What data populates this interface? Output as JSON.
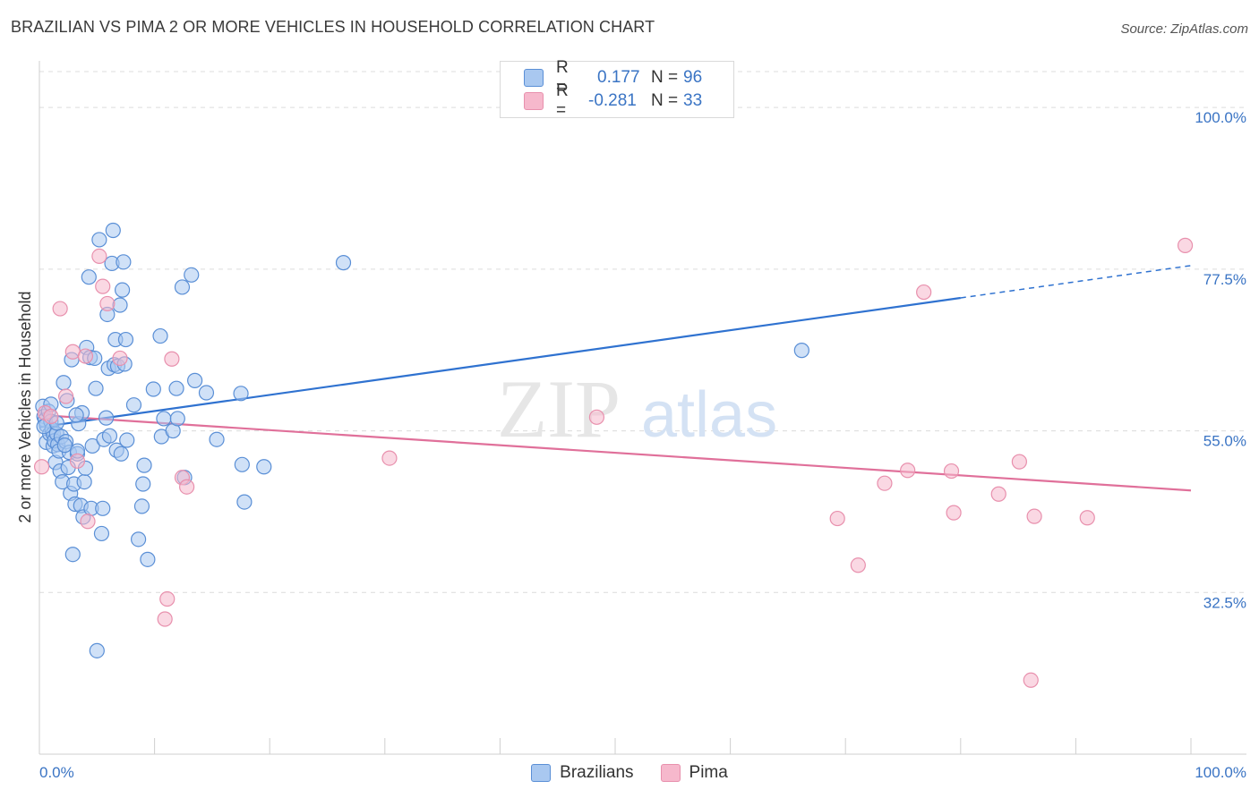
{
  "title": "BRAZILIAN VS PIMA 2 OR MORE VEHICLES IN HOUSEHOLD CORRELATION CHART",
  "source": "Source: ZipAtlas.com",
  "watermark": {
    "zip": "ZIP",
    "atlas": "atlas"
  },
  "colors": {
    "blue_fill": "#a9c8f0",
    "blue_stroke": "#5a8fd6",
    "blue_line": "#2f72d0",
    "pink_fill": "#f6b8cc",
    "pink_stroke": "#e890ad",
    "pink_line": "#e0709a",
    "axis_text": "#3a74c4",
    "grid": "#dcdcdc"
  },
  "legend": {
    "rows": [
      {
        "r_label": "R =",
        "r_value": "0.177",
        "n_label": "N =",
        "n_value": "96"
      },
      {
        "r_label": "R =",
        "r_value": "-0.281",
        "n_label": "N =",
        "n_value": "33"
      }
    ]
  },
  "bottom_legend": [
    "Brazilians",
    "Pima"
  ],
  "chart_data": {
    "type": "scatter",
    "xlabel": "",
    "ylabel": "2 or more Vehicles in Household",
    "xlim": [
      0,
      100
    ],
    "ylim": [
      10,
      105
    ],
    "x_tick_labels": [
      "0.0%",
      "100.0%"
    ],
    "y_ticks": [
      32.5,
      55.0,
      77.5,
      100.0
    ],
    "y_tick_labels": [
      "32.5%",
      "55.0%",
      "77.5%",
      "100.0%"
    ],
    "grid": true,
    "series": [
      {
        "name": "Brazilians",
        "trend": {
          "x0": 0,
          "y0": 55.5,
          "x1": 80,
          "y1": 73.5,
          "dash_to_x": 100,
          "dash_to_y": 78.0
        },
        "points": [
          [
            0.3,
            58.4
          ],
          [
            0.4,
            57.0
          ],
          [
            0.5,
            56.5
          ],
          [
            0.6,
            55.8
          ],
          [
            0.6,
            53.4
          ],
          [
            0.8,
            57.7
          ],
          [
            0.9,
            54.6
          ],
          [
            1.0,
            56.3
          ],
          [
            1.1,
            55.2
          ],
          [
            1.2,
            54.6
          ],
          [
            1.2,
            52.9
          ],
          [
            1.3,
            53.6
          ],
          [
            1.4,
            50.6
          ],
          [
            1.5,
            54.6
          ],
          [
            1.6,
            53.1
          ],
          [
            1.7,
            52.2
          ],
          [
            1.8,
            49.4
          ],
          [
            1.9,
            54.2
          ],
          [
            2.0,
            47.9
          ],
          [
            2.1,
            61.7
          ],
          [
            2.3,
            53.5
          ],
          [
            2.4,
            59.2
          ],
          [
            2.5,
            49.9
          ],
          [
            2.6,
            52.0
          ],
          [
            2.7,
            46.3
          ],
          [
            2.8,
            64.9
          ],
          [
            2.9,
            37.8
          ],
          [
            3.0,
            47.6
          ],
          [
            3.1,
            44.8
          ],
          [
            3.3,
            51.8
          ],
          [
            3.3,
            52.2
          ],
          [
            3.4,
            56.0
          ],
          [
            3.6,
            44.6
          ],
          [
            3.7,
            57.5
          ],
          [
            3.8,
            43.0
          ],
          [
            3.9,
            47.9
          ],
          [
            4.0,
            49.8
          ],
          [
            4.1,
            66.6
          ],
          [
            4.3,
            76.4
          ],
          [
            4.4,
            65.2
          ],
          [
            4.5,
            44.2
          ],
          [
            4.6,
            52.9
          ],
          [
            4.8,
            65.1
          ],
          [
            4.9,
            60.9
          ],
          [
            5.2,
            81.6
          ],
          [
            5.4,
            40.7
          ],
          [
            5.5,
            44.2
          ],
          [
            5.6,
            53.8
          ],
          [
            5.8,
            56.8
          ],
          [
            5.9,
            71.2
          ],
          [
            6.0,
            63.7
          ],
          [
            6.1,
            54.3
          ],
          [
            6.3,
            78.3
          ],
          [
            6.4,
            82.9
          ],
          [
            6.5,
            64.2
          ],
          [
            6.6,
            67.7
          ],
          [
            6.7,
            52.3
          ],
          [
            6.8,
            64.0
          ],
          [
            7.0,
            72.5
          ],
          [
            7.1,
            51.8
          ],
          [
            7.2,
            74.6
          ],
          [
            7.3,
            78.5
          ],
          [
            7.4,
            64.3
          ],
          [
            7.5,
            67.7
          ],
          [
            7.6,
            53.7
          ],
          [
            8.2,
            58.6
          ],
          [
            8.6,
            39.9
          ],
          [
            8.9,
            44.5
          ],
          [
            9.0,
            47.6
          ],
          [
            9.1,
            50.2
          ],
          [
            9.4,
            37.1
          ],
          [
            9.9,
            60.8
          ],
          [
            10.5,
            68.2
          ],
          [
            10.6,
            54.2
          ],
          [
            10.8,
            56.7
          ],
          [
            11.6,
            55.0
          ],
          [
            11.9,
            60.9
          ],
          [
            12.0,
            56.7
          ],
          [
            12.4,
            75.0
          ],
          [
            12.6,
            48.5
          ],
          [
            13.2,
            76.7
          ],
          [
            13.5,
            62.0
          ],
          [
            14.5,
            60.3
          ],
          [
            15.4,
            53.8
          ],
          [
            17.5,
            60.2
          ],
          [
            17.6,
            50.3
          ],
          [
            17.8,
            45.1
          ],
          [
            19.5,
            50.0
          ],
          [
            26.4,
            78.4
          ],
          [
            5.0,
            24.4
          ],
          [
            66.2,
            66.2
          ],
          [
            0.4,
            55.6
          ],
          [
            1.5,
            56.1
          ],
          [
            2.2,
            53.0
          ],
          [
            3.2,
            57.2
          ],
          [
            1.0,
            58.7
          ]
        ]
      },
      {
        "name": "Pima",
        "trend": {
          "x0": 0,
          "y0": 57.2,
          "x1": 100,
          "y1": 46.7
        },
        "points": [
          [
            0.2,
            50.0
          ],
          [
            0.5,
            57.5
          ],
          [
            1.0,
            57.0
          ],
          [
            1.8,
            72.0
          ],
          [
            2.3,
            59.8
          ],
          [
            2.9,
            66.0
          ],
          [
            3.3,
            50.8
          ],
          [
            4.0,
            65.4
          ],
          [
            4.2,
            42.4
          ],
          [
            5.2,
            79.3
          ],
          [
            5.5,
            75.1
          ],
          [
            5.9,
            72.7
          ],
          [
            7.0,
            65.1
          ],
          [
            10.9,
            28.8
          ],
          [
            11.1,
            31.6
          ],
          [
            11.5,
            65.0
          ],
          [
            12.4,
            48.5
          ],
          [
            12.8,
            47.2
          ],
          [
            30.4,
            51.2
          ],
          [
            48.4,
            56.9
          ],
          [
            69.3,
            42.8
          ],
          [
            71.1,
            36.3
          ],
          [
            73.4,
            47.7
          ],
          [
            75.4,
            49.5
          ],
          [
            76.8,
            74.3
          ],
          [
            79.2,
            49.4
          ],
          [
            79.4,
            43.6
          ],
          [
            83.3,
            46.2
          ],
          [
            85.1,
            50.7
          ],
          [
            86.1,
            20.3
          ],
          [
            86.4,
            43.1
          ],
          [
            91.0,
            42.9
          ],
          [
            99.5,
            80.8
          ]
        ]
      }
    ]
  }
}
